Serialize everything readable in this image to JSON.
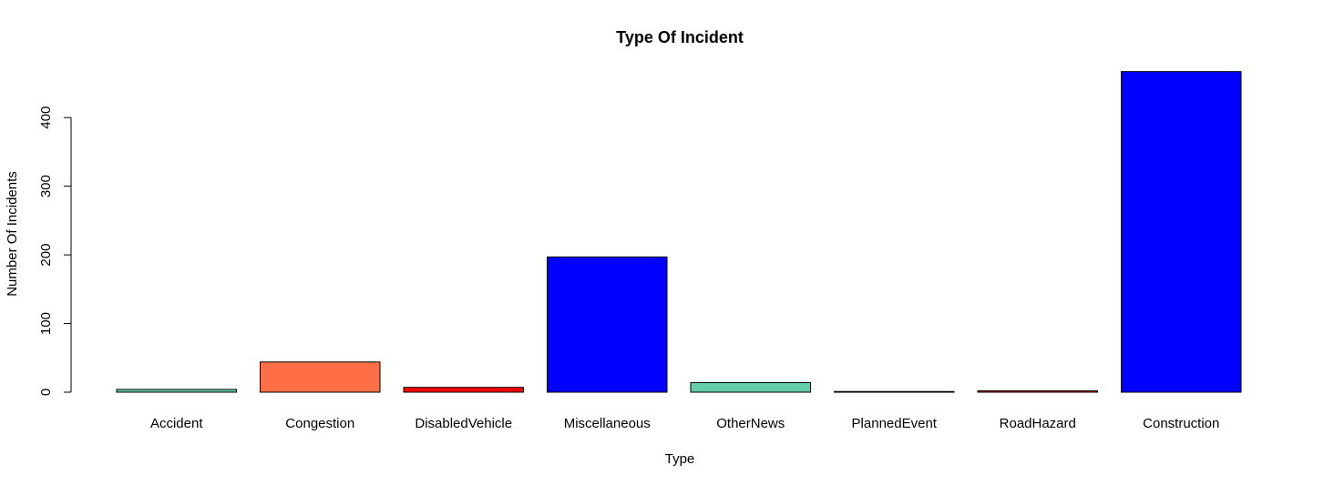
{
  "chart_data": {
    "type": "bar",
    "title": "Type Of Incident",
    "xlabel": "Type",
    "ylabel": "Number Of Incidents",
    "categories": [
      "Accident",
      "Congestion",
      "DisabledVehicle",
      "Miscellaneous",
      "OtherNews",
      "PlannedEvent",
      "RoadHazard",
      "Construction"
    ],
    "values": [
      4,
      44,
      7,
      197,
      14,
      1,
      2,
      467
    ],
    "colors": [
      "#66CDAA",
      "#FF6F47",
      "#FF0000",
      "#0000FF",
      "#66CDAA",
      "#FF6F47",
      "#FF0000",
      "#0000FF"
    ],
    "yticks": [
      0,
      100,
      200,
      300,
      400
    ],
    "ylim": [
      0,
      467
    ],
    "grid": false,
    "legend": "none"
  }
}
